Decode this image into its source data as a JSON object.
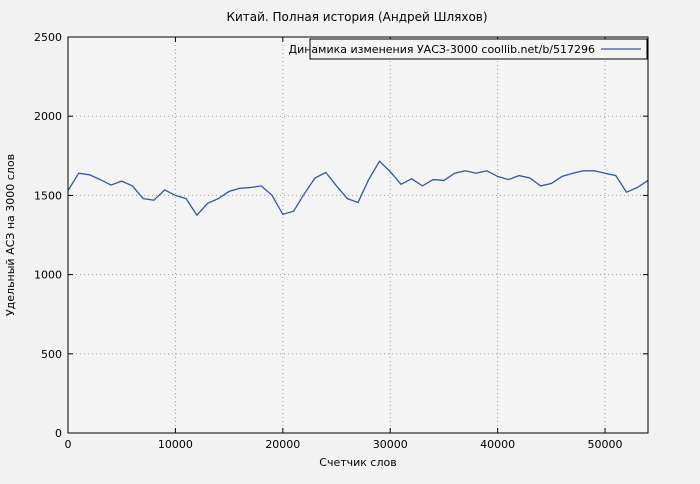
{
  "page": {
    "background": "#f2f2f2"
  },
  "chart_data": {
    "type": "line",
    "title": "Китай. Полная история (Андрей Шляхов)",
    "legend_label": "Динамика изменения УАСЗ-3000  coollib.net/b/517296",
    "xlabel": "Счетчик слов",
    "ylabel": "Удельный АСЗ на 3000 слов",
    "xlim": [
      0,
      54000
    ],
    "ylim": [
      0,
      2500
    ],
    "xticks": [
      0,
      10000,
      20000,
      30000,
      40000,
      50000
    ],
    "yticks": [
      0,
      500,
      1000,
      1500,
      2000,
      2500
    ],
    "grid": true,
    "legend_position": "top-right-inside",
    "line_color": "#3456a4",
    "grid_color": "#9a9a9a",
    "x": [
      0,
      1000,
      2000,
      3000,
      4000,
      5000,
      6000,
      7000,
      8000,
      9000,
      10000,
      11000,
      12000,
      13000,
      14000,
      15000,
      16000,
      17000,
      18000,
      19000,
      20000,
      21000,
      22000,
      23000,
      24000,
      25000,
      26000,
      27000,
      28000,
      29000,
      30000,
      31000,
      32000,
      33000,
      34000,
      35000,
      36000,
      37000,
      38000,
      39000,
      40000,
      41000,
      42000,
      43000,
      44000,
      45000,
      46000,
      47000,
      48000,
      49000,
      50000,
      51000,
      52000,
      53000,
      54000
    ],
    "values": [
      1530,
      1640,
      1630,
      1600,
      1565,
      1590,
      1560,
      1480,
      1470,
      1535,
      1500,
      1480,
      1375,
      1450,
      1480,
      1525,
      1545,
      1550,
      1560,
      1500,
      1380,
      1400,
      1510,
      1610,
      1645,
      1560,
      1480,
      1455,
      1600,
      1715,
      1650,
      1570,
      1605,
      1560,
      1600,
      1595,
      1640,
      1655,
      1640,
      1655,
      1620,
      1600,
      1625,
      1610,
      1560,
      1575,
      1620,
      1640,
      1655,
      1655,
      1640,
      1625,
      1520,
      1550,
      1595
    ]
  }
}
